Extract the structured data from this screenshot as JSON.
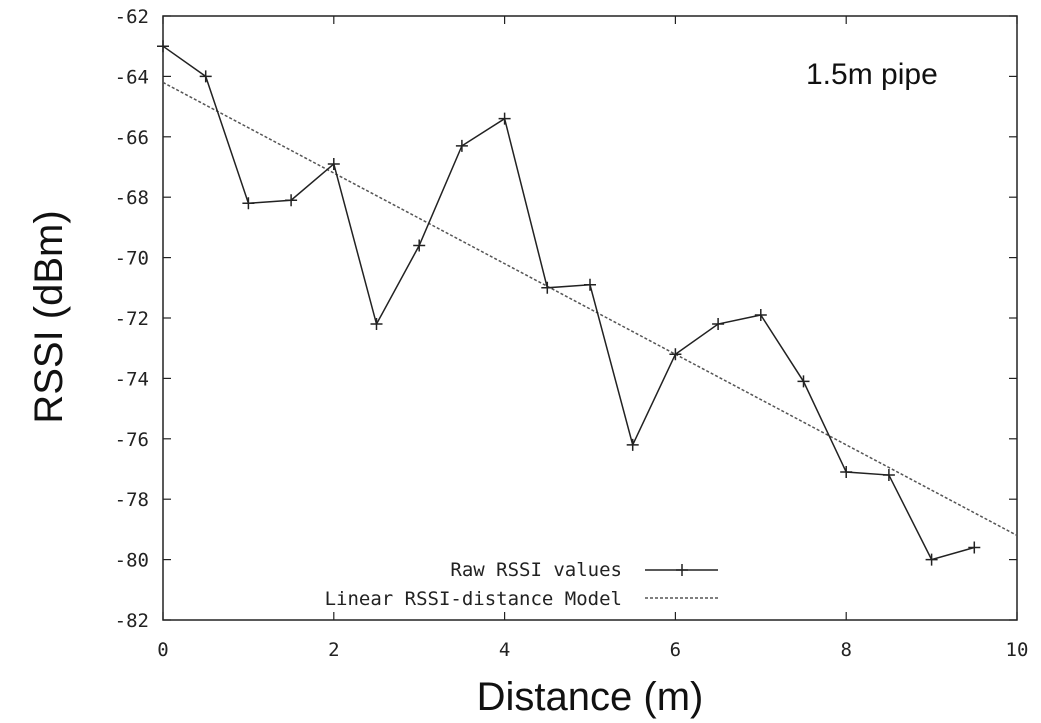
{
  "chart_data": {
    "type": "line",
    "title": "",
    "annotation": "1.5m pipe",
    "xlabel": "Distance (m)",
    "ylabel": "RSSI (dBm)",
    "xlim": [
      0,
      10
    ],
    "ylim": [
      -82,
      -62
    ],
    "xticks": [
      0,
      2,
      4,
      6,
      8,
      10
    ],
    "yticks": [
      -62,
      -64,
      -66,
      -68,
      -70,
      -72,
      -74,
      -76,
      -78,
      -80,
      -82
    ],
    "grid": false,
    "legend_position": "bottom-left",
    "series": [
      {
        "name": "Raw RSSI values",
        "style": "solid-with-plus-markers",
        "x": [
          0,
          0.5,
          1,
          1.5,
          2,
          2.5,
          3,
          3.5,
          4,
          4.5,
          5,
          5.5,
          6,
          6.5,
          7,
          7.5,
          8,
          8.5,
          9,
          9.5
        ],
        "y": [
          -63,
          -64,
          -68.2,
          -68.1,
          -66.9,
          -72.2,
          -69.6,
          -66.3,
          -65.4,
          -71,
          -70.9,
          -76.2,
          -73.2,
          -72.2,
          -71.9,
          -74.1,
          -77.1,
          -77.2,
          -80,
          -79.6
        ]
      },
      {
        "name": "Linear RSSI-distance Model",
        "style": "dashed",
        "x": [
          0,
          10
        ],
        "y": [
          -64.2,
          -79.2
        ]
      }
    ]
  }
}
